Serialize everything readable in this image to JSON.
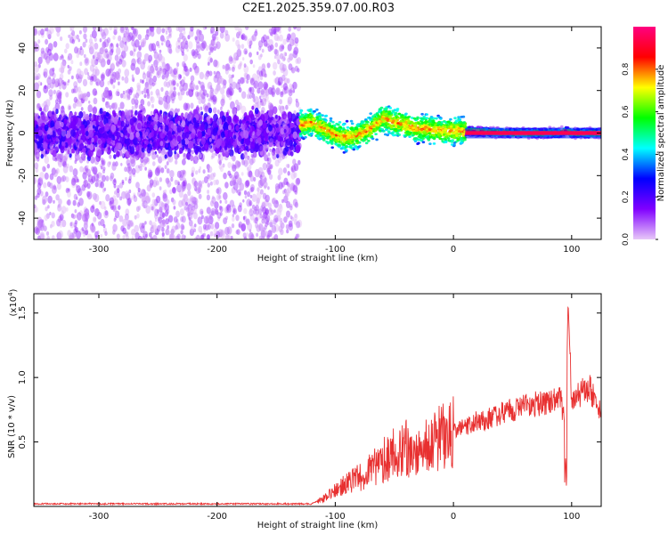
{
  "title": "C2E1.2025.359.07.00.R03",
  "chart_data": [
    {
      "type": "heatmap",
      "name": "spectrogram",
      "title": "C2E1.2025.359.07.00.R03",
      "xlabel": "Height of straight line (km)",
      "ylabel": "Frequency (Hz)",
      "xlim": [
        -355,
        125
      ],
      "ylim": [
        -50,
        50
      ],
      "x_ticks": [
        -300,
        -200,
        -100,
        0,
        100
      ],
      "y_ticks": [
        -40,
        -20,
        0,
        20,
        40
      ],
      "x_tick_labels": [
        "-300",
        "-200",
        "-100",
        "0",
        "100"
      ],
      "y_tick_labels": [
        "-40",
        "-20",
        "0",
        "20",
        "40"
      ],
      "ridge_x": [
        -355,
        -300,
        -250,
        -200,
        -140,
        -130,
        -120,
        -110,
        -100,
        -90,
        -80,
        -70,
        -60,
        -50,
        -40,
        -30,
        -20,
        -10,
        0,
        10,
        50,
        90,
        95,
        100,
        125
      ],
      "ridge_y": [
        1,
        1,
        1,
        1,
        1,
        4,
        5,
        2,
        -1,
        -2,
        -1,
        2,
        7,
        5,
        4,
        2,
        2,
        1,
        1,
        1,
        0,
        0,
        1,
        0,
        0
      ],
      "colorbar": {
        "label": "Normalized spectral amplitude",
        "range": [
          0.0,
          1.0
        ],
        "ticks": [
          0.0,
          0.2,
          0.4,
          0.6,
          0.8
        ],
        "tick_labels": [
          "0.0",
          "0.2",
          "0.4",
          "0.6",
          "0.8"
        ],
        "colors": [
          "#e8c8f8",
          "#8000ff",
          "#0000ff",
          "#00ffff",
          "#00ff00",
          "#ffff00",
          "#ff0000",
          "#ff0080"
        ]
      }
    },
    {
      "type": "line",
      "name": "snr",
      "xlabel": "Height of straight line (km)",
      "ylabel": "SNR (10 * v/v)",
      "multiplier_label": "(x10",
      "multiplier_exp": "4",
      "multiplier_close": ")",
      "xlim": [
        -355,
        125
      ],
      "ylim": [
        0,
        1.65
      ],
      "x_ticks": [
        -300,
        -200,
        -100,
        0,
        100
      ],
      "y_ticks": [
        0.5,
        1.0,
        1.5
      ],
      "x_tick_labels": [
        "-300",
        "-200",
        "-100",
        "0",
        "100"
      ],
      "y_tick_labels": [
        "0.5",
        "1.0",
        "1.5"
      ],
      "color": "#e83030",
      "series": [
        {
          "name": "SNR",
          "x": [
            -355,
            -300,
            -250,
            -200,
            -150,
            -120,
            -110,
            -100,
            -90,
            -80,
            -70,
            -60,
            -50,
            -40,
            -30,
            -20,
            -10,
            0,
            10,
            20,
            30,
            40,
            50,
            60,
            70,
            80,
            90,
            95,
            97,
            100,
            110,
            115,
            125
          ],
          "y": [
            0.02,
            0.02,
            0.02,
            0.02,
            0.02,
            0.02,
            0.06,
            0.12,
            0.18,
            0.22,
            0.28,
            0.35,
            0.42,
            0.45,
            0.4,
            0.5,
            0.55,
            0.58,
            0.62,
            0.66,
            0.68,
            0.72,
            0.75,
            0.78,
            0.8,
            0.8,
            0.85,
            0.6,
            1.6,
            0.8,
            0.9,
            0.92,
            0.75
          ]
        }
      ]
    }
  ]
}
